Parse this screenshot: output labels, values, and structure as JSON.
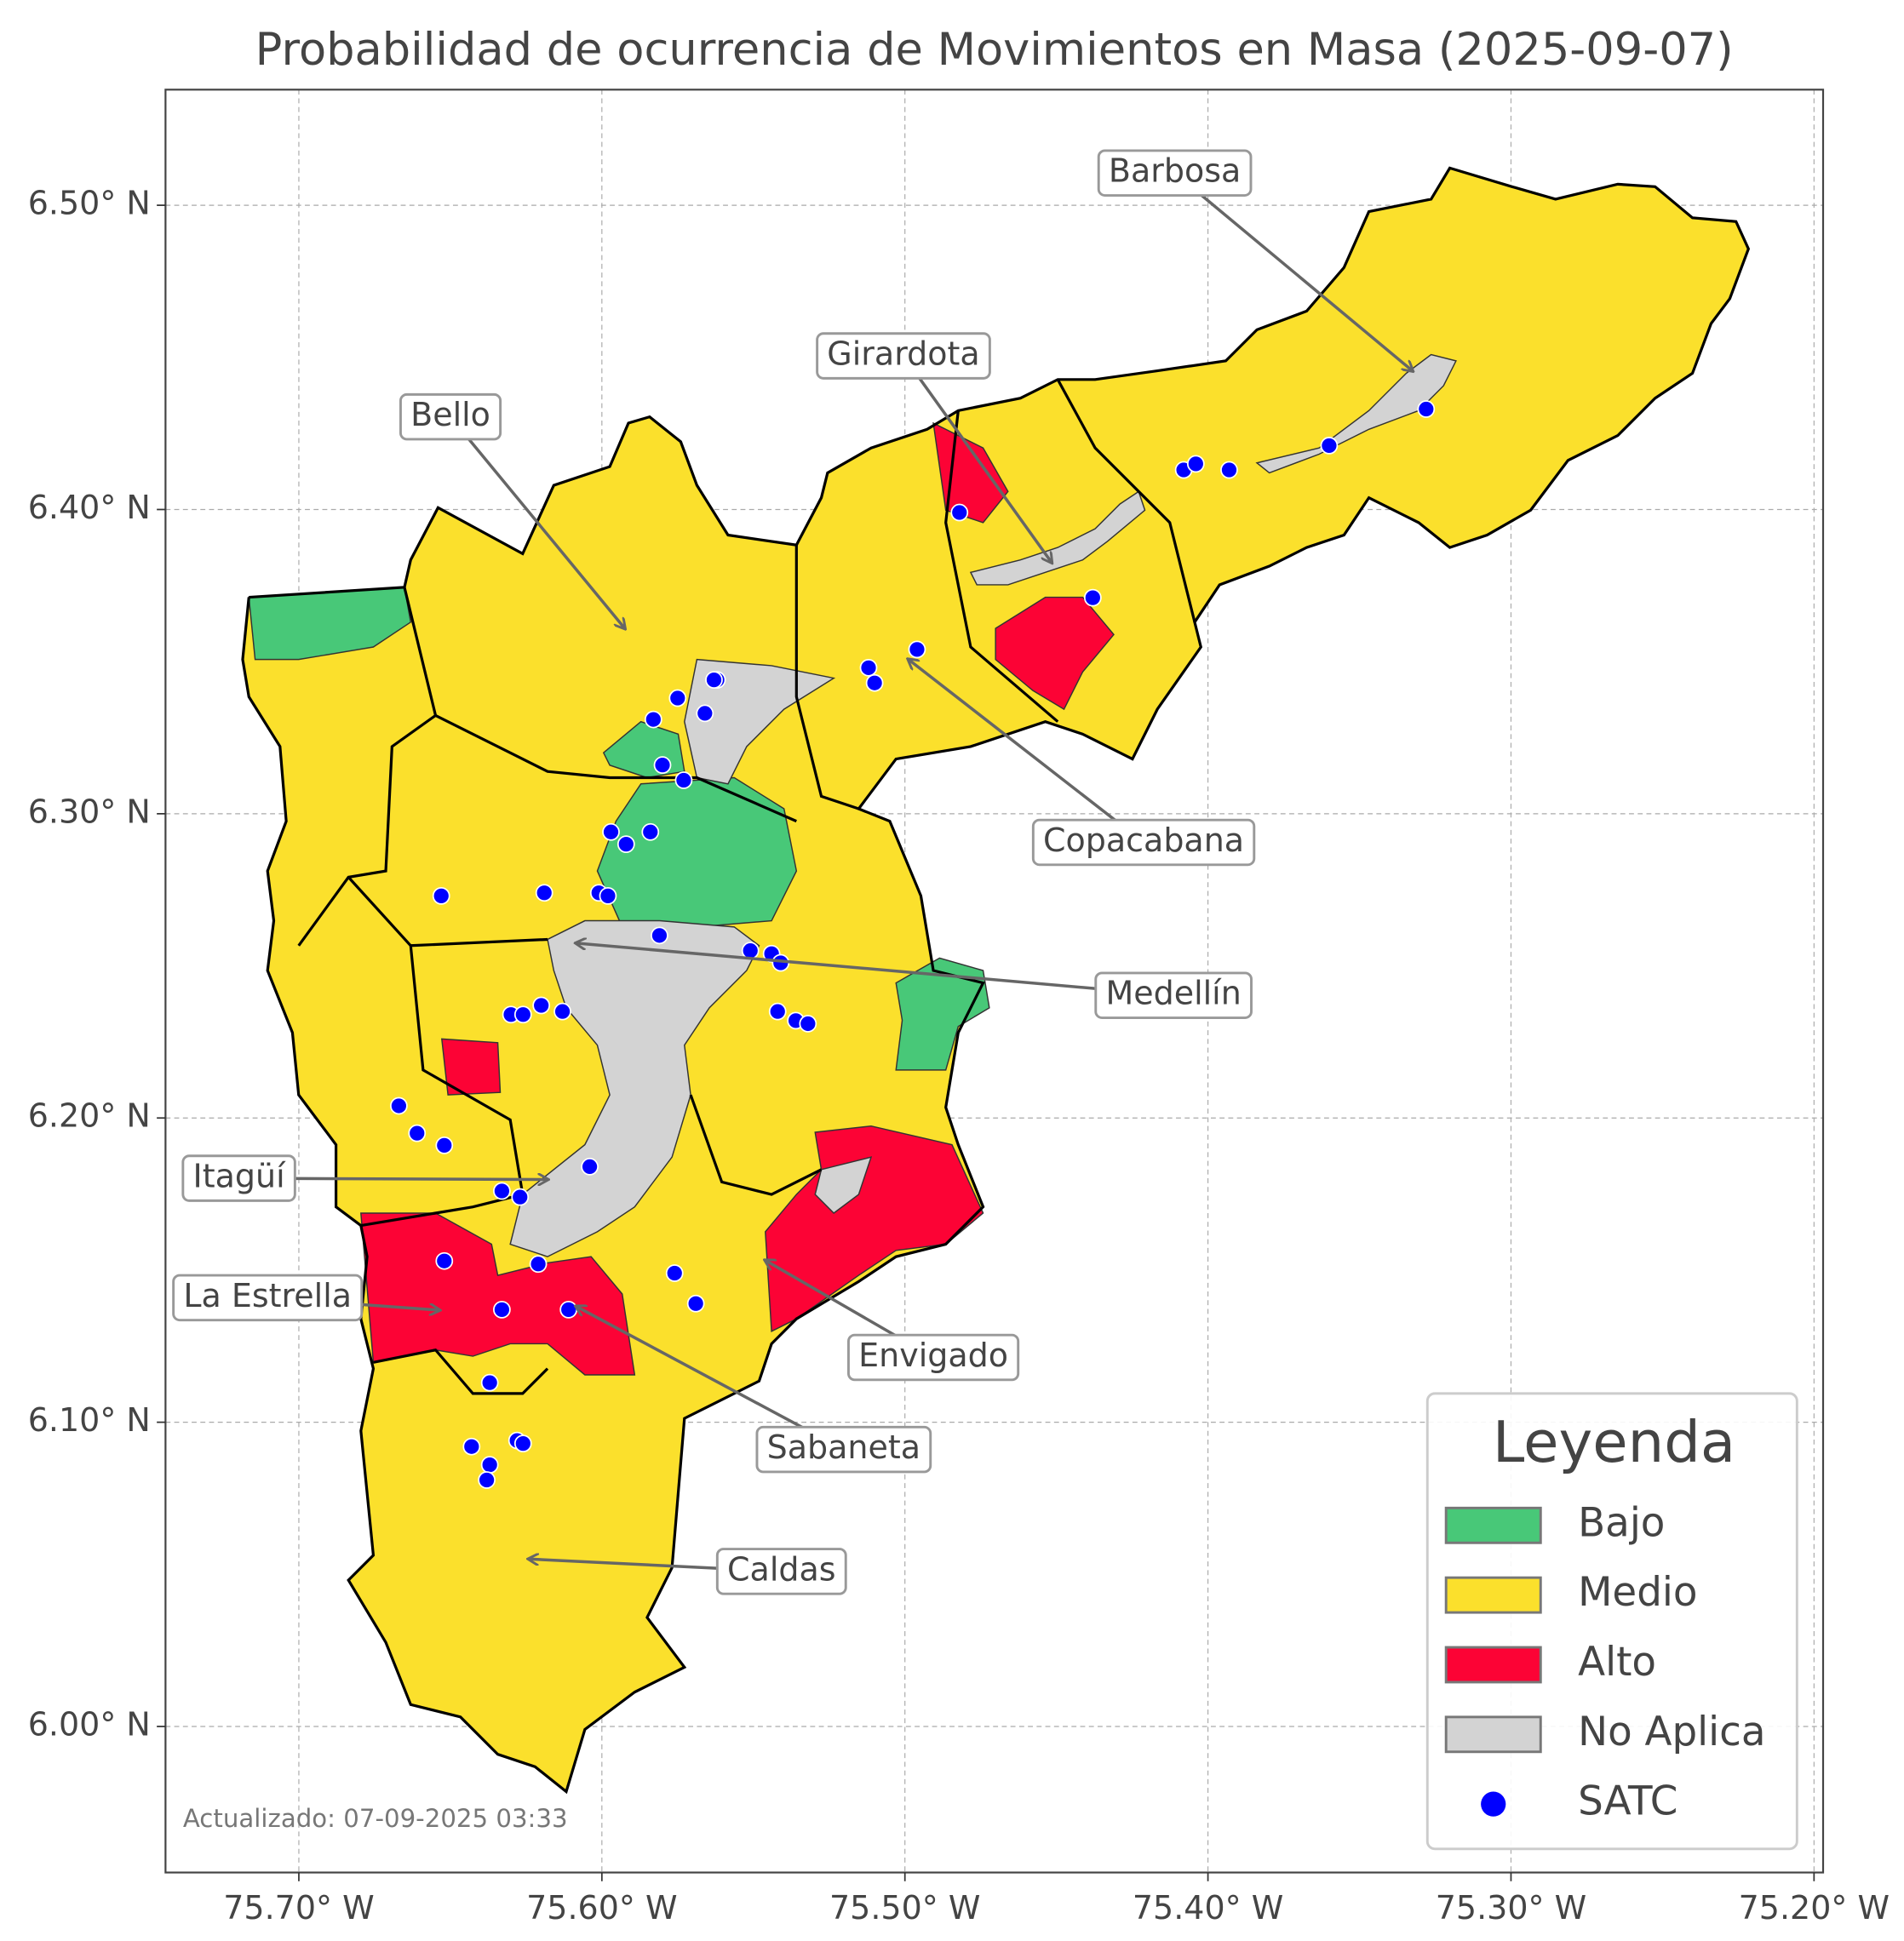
{
  "chart_data": {
    "type": "map",
    "title": "Probabilidad de ocurrencia de Movimientos en Masa (2025-09-07)",
    "xlim": [
      -75.744,
      -75.197
    ],
    "ylim": [
      5.952,
      6.538
    ],
    "xticks": [
      {
        "value": -75.7,
        "label": "75.70° W"
      },
      {
        "value": -75.6,
        "label": "75.60° W"
      },
      {
        "value": -75.5,
        "label": "75.50° W"
      },
      {
        "value": -75.4,
        "label": "75.40° W"
      },
      {
        "value": -75.3,
        "label": "75.30° W"
      },
      {
        "value": -75.2,
        "label": "75.20° W"
      }
    ],
    "yticks": [
      {
        "value": 6.0,
        "label": "6.00° N"
      },
      {
        "value": 6.1,
        "label": "6.10° N"
      },
      {
        "value": 6.2,
        "label": "6.20° N"
      },
      {
        "value": 6.3,
        "label": "6.30° N"
      },
      {
        "value": 6.4,
        "label": "6.40° N"
      },
      {
        "value": 6.5,
        "label": "6.50° N"
      }
    ],
    "grid": true,
    "legend": {
      "title": "Leyenda",
      "corner": "lower right",
      "items": [
        {
          "name": "Bajo",
          "color": "#48c878"
        },
        {
          "name": "Medio",
          "color": "#fbe02c"
        },
        {
          "name": "Alto",
          "color": "#fc0335"
        },
        {
          "name": "No Aplica",
          "color": "#d3d3d3"
        },
        {
          "name": "SATC",
          "color": "#0000ff"
        }
      ]
    },
    "annotations": [
      "Barbosa",
      "Girardota",
      "Bello",
      "Copacabana",
      "Medellín",
      "Itagüí",
      "La Estrella",
      "Envigado",
      "Sabaneta",
      "Caldas"
    ],
    "points": {
      "lon": [
        -75.482,
        -75.438,
        -75.496,
        -75.512,
        -75.51,
        -75.408,
        -75.404,
        -75.393,
        -75.36,
        -75.328,
        -75.562,
        -75.563,
        -75.575,
        -75.566,
        -75.583,
        -75.58,
        -75.573,
        -75.597,
        -75.584,
        -75.592,
        -75.619,
        -75.601,
        -75.598,
        -75.653,
        -75.581,
        -75.551,
        -75.544,
        -75.541,
        -75.542,
        -75.536,
        -75.532,
        -75.63,
        -75.626,
        -75.62,
        -75.613,
        -75.667,
        -75.661,
        -75.652,
        -75.604,
        -75.633,
        -75.627,
        -75.652,
        -75.621,
        -75.576,
        -75.569,
        -75.633,
        -75.611,
        -75.637,
        -75.643,
        -75.628,
        -75.626,
        -75.637,
        -75.638
      ],
      "lat": [
        6.399,
        6.371,
        6.354,
        6.348,
        6.343,
        6.413,
        6.415,
        6.413,
        6.421,
        6.433,
        6.344,
        6.344,
        6.338,
        6.333,
        6.331,
        6.316,
        6.311,
        6.294,
        6.294,
        6.29,
        6.274,
        6.274,
        6.273,
        6.273,
        6.26,
        6.255,
        6.254,
        6.251,
        6.235,
        6.232,
        6.231,
        6.234,
        6.234,
        6.237,
        6.235,
        6.204,
        6.195,
        6.191,
        6.184,
        6.176,
        6.174,
        6.153,
        6.152,
        6.149,
        6.139,
        6.137,
        6.137,
        6.113,
        6.092,
        6.094,
        6.093,
        6.086,
        6.081
      ]
    },
    "footnote": "Actualizado: 07-09-2025 03:33"
  }
}
